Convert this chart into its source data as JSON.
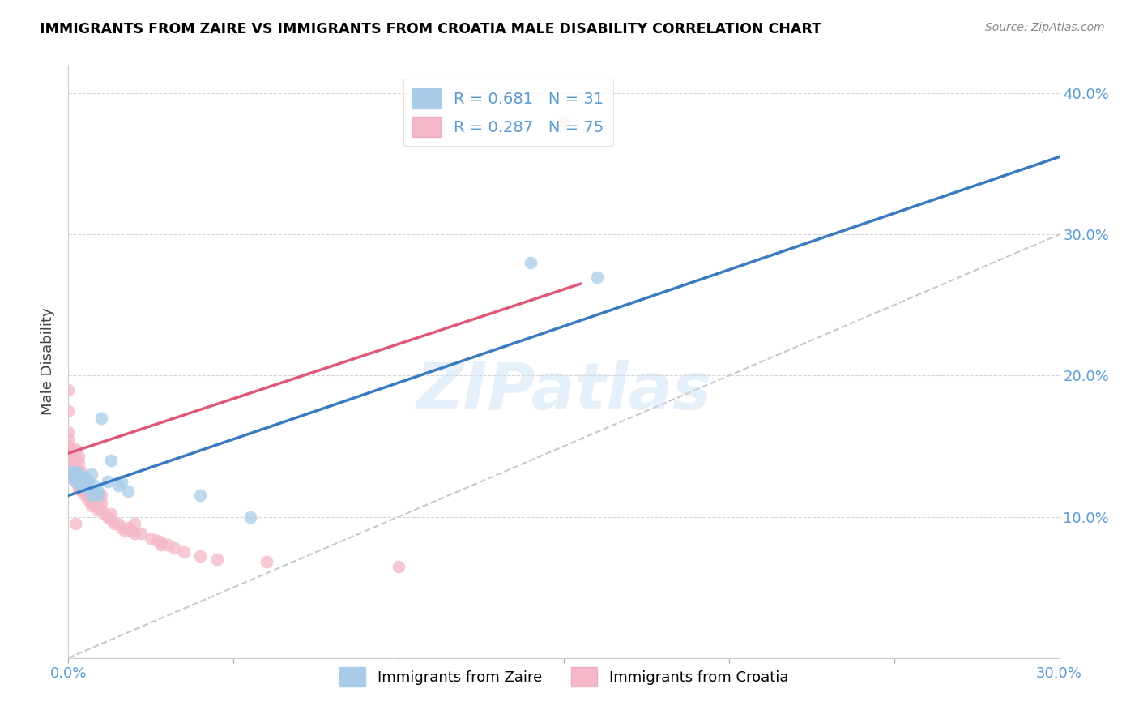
{
  "title": "IMMIGRANTS FROM ZAIRE VS IMMIGRANTS FROM CROATIA MALE DISABILITY CORRELATION CHART",
  "source": "Source: ZipAtlas.com",
  "tick_color": "#5b9bd5",
  "ylabel": "Male Disability",
  "xlim": [
    0.0,
    0.3
  ],
  "ylim": [
    0.0,
    0.42
  ],
  "xtick_positions": [
    0.0,
    0.05,
    0.1,
    0.15,
    0.2,
    0.25,
    0.3
  ],
  "xtick_labels": [
    "0.0%",
    "",
    "",
    "",
    "",
    "",
    "30.0%"
  ],
  "yticks": [
    0.0,
    0.1,
    0.2,
    0.3,
    0.4
  ],
  "ytick_labels": [
    "",
    "10.0%",
    "20.0%",
    "30.0%",
    "40.0%"
  ],
  "zaire_color": "#a8cce8",
  "croatia_color": "#f4b8c8",
  "zaire_line_color": "#3a7abf",
  "croatia_line_color": "#e05878",
  "diagonal_color": "#c8c8c8",
  "R_zaire": 0.681,
  "N_zaire": 31,
  "R_croatia": 0.287,
  "N_croatia": 75,
  "watermark": "ZIPatlas",
  "zaire_line_x0": 0.0,
  "zaire_line_y0": 0.115,
  "zaire_line_x1": 0.3,
  "zaire_line_y1": 0.355,
  "croatia_line_x0": 0.0,
  "croatia_line_y0": 0.145,
  "croatia_line_x1": 0.155,
  "croatia_line_y1": 0.265,
  "zaire_points_x": [
    0.001,
    0.001,
    0.002,
    0.002,
    0.002,
    0.003,
    0.003,
    0.003,
    0.004,
    0.004,
    0.004,
    0.005,
    0.005,
    0.006,
    0.006,
    0.007,
    0.007,
    0.008,
    0.008,
    0.009,
    0.009,
    0.01,
    0.012,
    0.013,
    0.015,
    0.016,
    0.018,
    0.04,
    0.055,
    0.14,
    0.16
  ],
  "zaire_points_y": [
    0.128,
    0.132,
    0.125,
    0.128,
    0.132,
    0.125,
    0.128,
    0.131,
    0.122,
    0.125,
    0.128,
    0.122,
    0.128,
    0.12,
    0.125,
    0.13,
    0.115,
    0.118,
    0.122,
    0.115,
    0.118,
    0.17,
    0.125,
    0.14,
    0.122,
    0.125,
    0.118,
    0.115,
    0.1,
    0.28,
    0.27
  ],
  "croatia_points_x": [
    0.0,
    0.0,
    0.0,
    0.0,
    0.0,
    0.0,
    0.0,
    0.0,
    0.0,
    0.0,
    0.001,
    0.001,
    0.001,
    0.001,
    0.001,
    0.002,
    0.002,
    0.002,
    0.002,
    0.002,
    0.002,
    0.002,
    0.003,
    0.003,
    0.003,
    0.003,
    0.003,
    0.003,
    0.004,
    0.004,
    0.004,
    0.004,
    0.005,
    0.005,
    0.005,
    0.005,
    0.006,
    0.006,
    0.006,
    0.006,
    0.007,
    0.007,
    0.007,
    0.008,
    0.008,
    0.009,
    0.009,
    0.01,
    0.01,
    0.01,
    0.011,
    0.012,
    0.013,
    0.013,
    0.014,
    0.015,
    0.016,
    0.017,
    0.018,
    0.019,
    0.02,
    0.02,
    0.022,
    0.025,
    0.027,
    0.028,
    0.028,
    0.03,
    0.032,
    0.035,
    0.04,
    0.045,
    0.06,
    0.1,
    0.15
  ],
  "croatia_points_y": [
    0.128,
    0.132,
    0.135,
    0.14,
    0.145,
    0.15,
    0.155,
    0.16,
    0.175,
    0.19,
    0.128,
    0.132,
    0.138,
    0.143,
    0.148,
    0.125,
    0.13,
    0.135,
    0.138,
    0.143,
    0.148,
    0.095,
    0.122,
    0.128,
    0.132,
    0.138,
    0.143,
    0.12,
    0.118,
    0.122,
    0.128,
    0.132,
    0.115,
    0.118,
    0.122,
    0.128,
    0.112,
    0.115,
    0.118,
    0.122,
    0.108,
    0.112,
    0.115,
    0.108,
    0.115,
    0.105,
    0.112,
    0.105,
    0.11,
    0.115,
    0.102,
    0.1,
    0.098,
    0.102,
    0.095,
    0.095,
    0.092,
    0.09,
    0.092,
    0.09,
    0.088,
    0.095,
    0.088,
    0.085,
    0.083,
    0.082,
    0.08,
    0.08,
    0.078,
    0.075,
    0.072,
    0.07,
    0.068,
    0.065,
    0.38
  ]
}
